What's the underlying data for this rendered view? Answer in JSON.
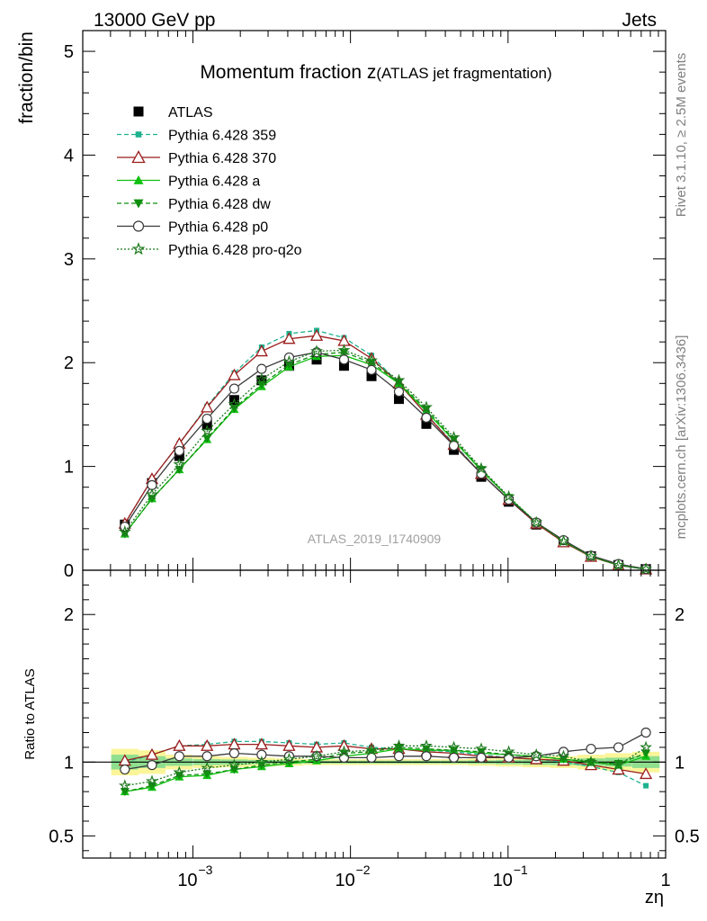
{
  "header": {
    "left": "13000 GeV pp",
    "right": "Jets"
  },
  "side_labels": {
    "rivet": "Rivet 3.1.10, ≥ 2.5M events",
    "mcplots": "mcplots.cern.ch [arXiv:1306.3436]"
  },
  "chart_data": [
    {
      "type": "scatter",
      "panel": "main",
      "title": "Momentum fraction z",
      "title_suffix": "(ATLAS jet fragmentation)",
      "ylabel": "fraction/bin",
      "watermark": "ATLAS_2019_I1740909",
      "xscale": "log",
      "xlim": [
        0.0002,
        1
      ],
      "ylim": [
        0,
        5.2
      ],
      "yticks": [
        0,
        1,
        2,
        3,
        4,
        5
      ],
      "x": [
        0.00037,
        0.00055,
        0.00082,
        0.00123,
        0.00183,
        0.00273,
        0.00408,
        0.0061,
        0.0091,
        0.0136,
        0.0203,
        0.0303,
        0.0453,
        0.0676,
        0.101,
        0.151,
        0.225,
        0.336,
        0.502,
        0.75
      ],
      "series": [
        {
          "name": "ATLAS",
          "color": "#000000",
          "marker": "square",
          "line": "none",
          "values": [
            0.44,
            0.84,
            1.1,
            1.4,
            1.64,
            1.83,
            1.97,
            2.03,
            1.97,
            1.87,
            1.65,
            1.41,
            1.16,
            0.9,
            0.66,
            0.44,
            0.27,
            0.135,
            0.05,
            0.01
          ]
        },
        {
          "name": "Pythia 6.428 359",
          "color": "#1fb28f",
          "marker": "square-small",
          "line": "dashed",
          "values": [
            0.45,
            0.88,
            1.22,
            1.58,
            1.9,
            2.15,
            2.28,
            2.31,
            2.24,
            2.07,
            1.8,
            1.5,
            1.22,
            0.93,
            0.68,
            0.45,
            0.27,
            0.13,
            0.047,
            0.0085
          ]
        },
        {
          "name": "Pythia 6.428 370",
          "color": "#9b1c1c",
          "marker": "triangle-open",
          "line": "solid",
          "values": [
            0.45,
            0.88,
            1.22,
            1.57,
            1.88,
            2.11,
            2.23,
            2.26,
            2.21,
            2.04,
            1.8,
            1.5,
            1.21,
            0.93,
            0.68,
            0.45,
            0.27,
            0.13,
            0.048,
            0.0093
          ]
        },
        {
          "name": "Pythia 6.428 a",
          "color": "#11c011",
          "marker": "triangle",
          "line": "solid",
          "values": [
            0.35,
            0.69,
            0.97,
            1.26,
            1.55,
            1.77,
            1.96,
            2.06,
            2.07,
            1.98,
            1.8,
            1.53,
            1.25,
            0.96,
            0.7,
            0.46,
            0.28,
            0.135,
            0.05,
            0.01
          ]
        },
        {
          "name": "Pythia 6.428 dw",
          "color": "#0f8f0f",
          "marker": "triangle-down",
          "line": "dashed",
          "values": [
            0.35,
            0.69,
            0.97,
            1.27,
            1.56,
            1.79,
            1.98,
            2.08,
            2.1,
            2.0,
            1.81,
            1.55,
            1.26,
            0.97,
            0.7,
            0.46,
            0.28,
            0.135,
            0.05,
            0.011
          ]
        },
        {
          "name": "Pythia 6.428 p0",
          "color": "#3a3a3a",
          "marker": "circle-open",
          "line": "solid",
          "values": [
            0.42,
            0.82,
            1.15,
            1.46,
            1.75,
            1.94,
            2.05,
            2.1,
            2.03,
            1.93,
            1.72,
            1.47,
            1.2,
            0.93,
            0.68,
            0.46,
            0.29,
            0.14,
            0.06,
            0.012
          ]
        },
        {
          "name": "Pythia 6.428 pro-q2o",
          "color": "#1e7a1e",
          "marker": "star",
          "line": "dotted",
          "values": [
            0.37,
            0.73,
            1.02,
            1.34,
            1.6,
            1.84,
            2.01,
            2.11,
            2.12,
            2.02,
            1.83,
            1.57,
            1.28,
            0.98,
            0.71,
            0.46,
            0.28,
            0.135,
            0.049,
            0.011
          ]
        }
      ]
    },
    {
      "type": "line",
      "panel": "ratio",
      "ylabel": "Ratio to ATLAS",
      "xlabel": "zη",
      "xscale": "log",
      "xlim": [
        0.0002,
        1
      ],
      "ylim": [
        0.35,
        2.3
      ],
      "yticks": [
        0.5,
        1,
        2
      ],
      "xticks": [
        0.001,
        0.01,
        0.1,
        1
      ],
      "xtick_labels": [
        "10",
        "10",
        "10",
        "1"
      ],
      "xtick_exponents": [
        "−3",
        "−2",
        "−1",
        ""
      ],
      "x": [
        0.00037,
        0.00055,
        0.00082,
        0.00123,
        0.00183,
        0.00273,
        0.00408,
        0.0061,
        0.0091,
        0.0136,
        0.0203,
        0.0303,
        0.0453,
        0.0676,
        0.101,
        0.151,
        0.225,
        0.336,
        0.502,
        0.75
      ],
      "band_inner": [
        0.05,
        0.04,
        0.025,
        0.02,
        0.018,
        0.015,
        0.012,
        0.01,
        0.01,
        0.01,
        0.01,
        0.01,
        0.01,
        0.012,
        0.015,
        0.018,
        0.02,
        0.025,
        0.03,
        0.04
      ],
      "band_outer": [
        0.09,
        0.08,
        0.05,
        0.04,
        0.035,
        0.03,
        0.025,
        0.02,
        0.02,
        0.02,
        0.02,
        0.02,
        0.02,
        0.025,
        0.03,
        0.035,
        0.04,
        0.05,
        0.06,
        0.07
      ],
      "series": [
        {
          "name": "Pythia 6.428 359",
          "color": "#1fb28f",
          "marker": "square-small",
          "line": "dashed",
          "values": [
            1.0,
            1.05,
            1.11,
            1.12,
            1.14,
            1.14,
            1.13,
            1.12,
            1.13,
            1.1,
            1.09,
            1.08,
            1.07,
            1.05,
            1.03,
            1.02,
            1.0,
            0.97,
            0.93,
            0.84
          ]
        },
        {
          "name": "Pythia 6.428 370",
          "color": "#9b1c1c",
          "marker": "triangle-open",
          "line": "solid",
          "values": [
            1.01,
            1.05,
            1.11,
            1.11,
            1.12,
            1.12,
            1.11,
            1.1,
            1.11,
            1.09,
            1.09,
            1.07,
            1.06,
            1.04,
            1.03,
            1.02,
            1.01,
            0.98,
            0.95,
            0.92
          ]
        },
        {
          "name": "Pythia 6.428 a",
          "color": "#11c011",
          "marker": "triangle",
          "line": "solid",
          "values": [
            0.8,
            0.83,
            0.9,
            0.91,
            0.95,
            0.97,
            0.99,
            1.01,
            1.04,
            1.06,
            1.09,
            1.08,
            1.08,
            1.06,
            1.05,
            1.04,
            1.02,
            1.0,
            0.98,
            1.04
          ]
        },
        {
          "name": "Pythia 6.428 dw",
          "color": "#0f8f0f",
          "marker": "triangle-down",
          "line": "dashed",
          "values": [
            0.8,
            0.84,
            0.91,
            0.92,
            0.95,
            0.98,
            1.0,
            1.02,
            1.06,
            1.07,
            1.1,
            1.09,
            1.08,
            1.07,
            1.05,
            1.04,
            1.02,
            1.0,
            0.99,
            1.06
          ]
        },
        {
          "name": "Pythia 6.428 p0",
          "color": "#3a3a3a",
          "marker": "circle-open",
          "line": "solid",
          "values": [
            0.95,
            0.98,
            1.04,
            1.04,
            1.06,
            1.05,
            1.04,
            1.04,
            1.03,
            1.03,
            1.04,
            1.04,
            1.03,
            1.03,
            1.03,
            1.04,
            1.07,
            1.09,
            1.1,
            1.2
          ]
        },
        {
          "name": "Pythia 6.428 pro-q2o",
          "color": "#1e7a1e",
          "marker": "star",
          "line": "dotted",
          "values": [
            0.84,
            0.87,
            0.93,
            0.96,
            0.98,
            1.0,
            1.02,
            1.04,
            1.07,
            1.08,
            1.11,
            1.11,
            1.1,
            1.09,
            1.07,
            1.05,
            1.04,
            1.0,
            0.98,
            1.1
          ]
        }
      ]
    }
  ]
}
